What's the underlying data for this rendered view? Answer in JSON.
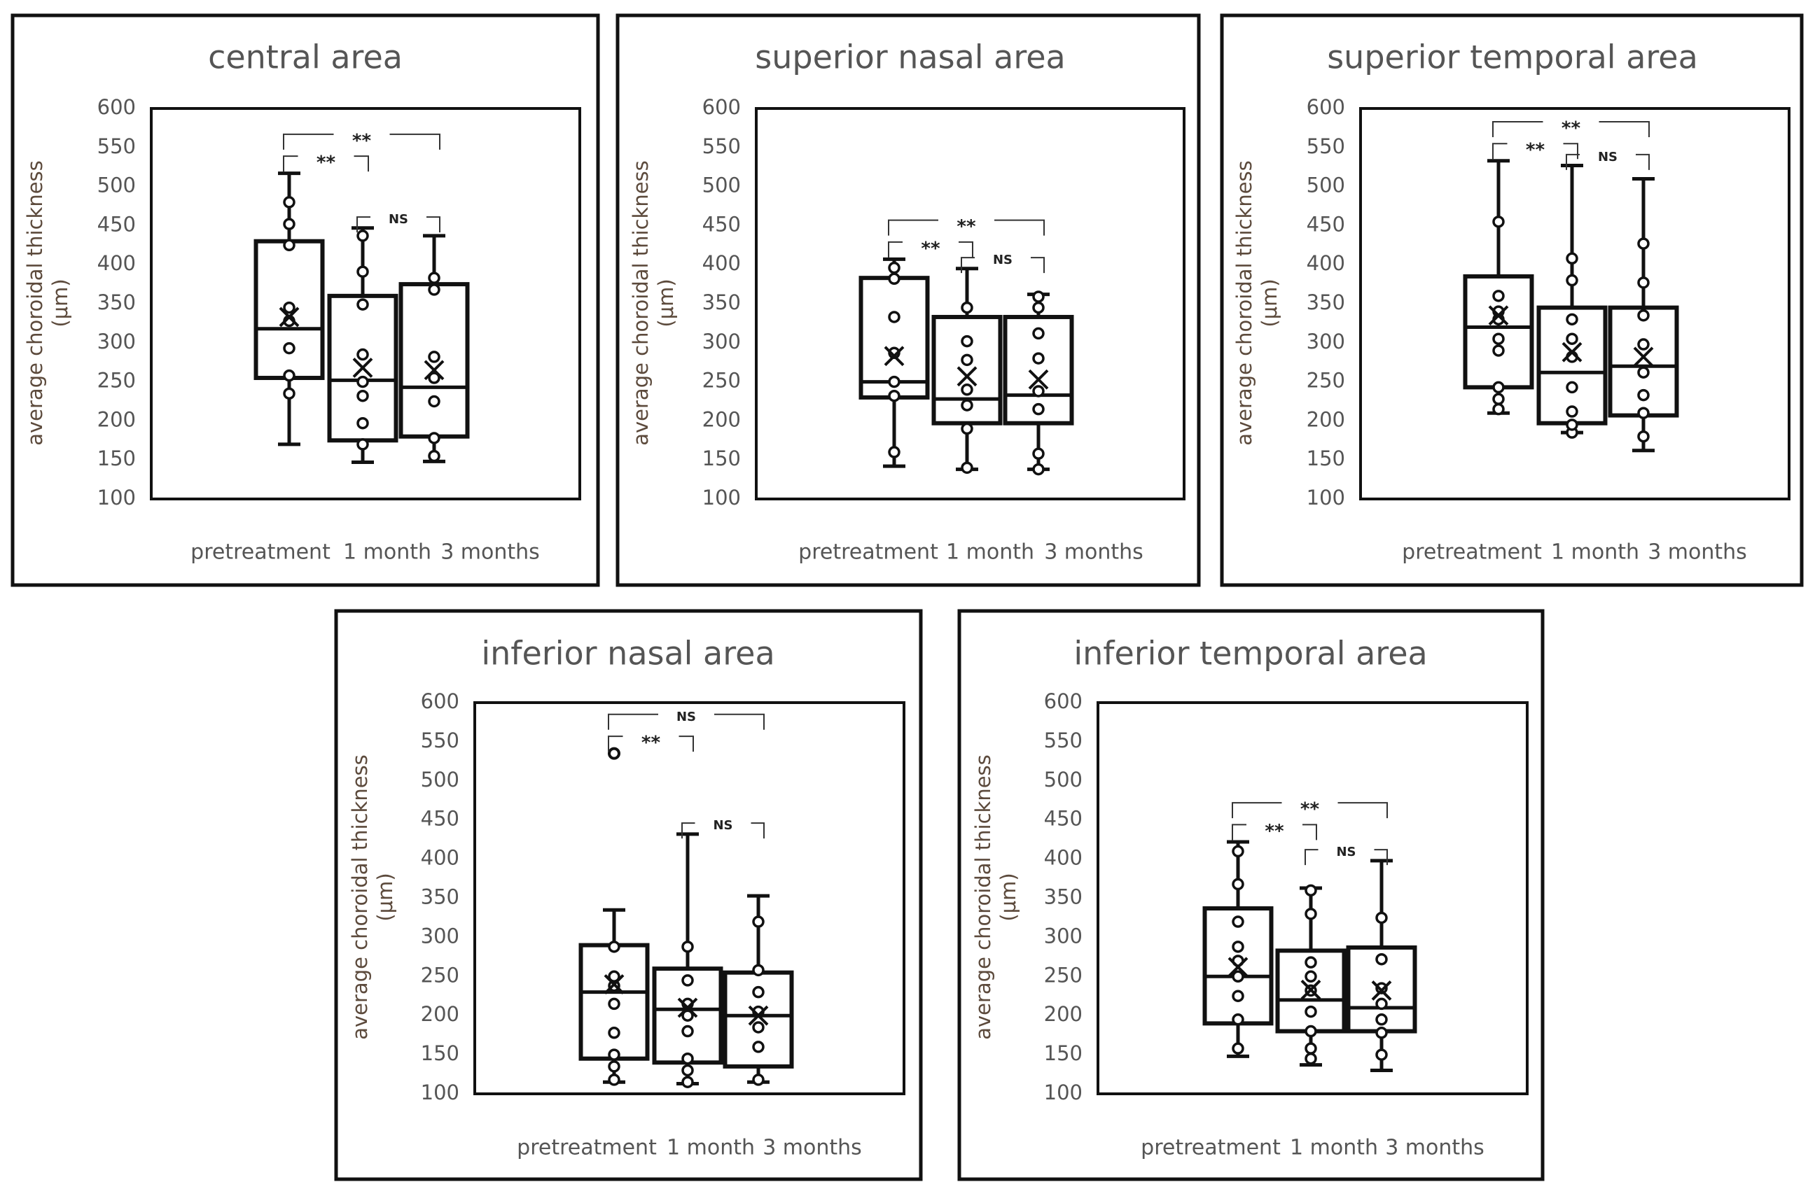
{
  "chart_data": [
    {
      "type": "box",
      "title": "central area",
      "ylabel": "average choroidal thickness (μm)",
      "ylabel_lines": [
        "average choroidal thickness",
        "(μm)"
      ],
      "ylim": [
        100,
        600
      ],
      "yticks": [
        100,
        150,
        200,
        250,
        300,
        350,
        400,
        450,
        500,
        550,
        600
      ],
      "categories": [
        "pretreatment",
        "1 month",
        "3 months"
      ],
      "boxes": [
        {
          "min": 170,
          "q1": 255,
          "median": 318,
          "q3": 430,
          "max": 517,
          "mean": 333,
          "points": [
            235,
            258,
            293,
            328,
            345,
            425,
            452,
            480
          ]
        },
        {
          "min": 147,
          "q1": 175,
          "median": 252,
          "q3": 360,
          "max": 447,
          "mean": 268,
          "points": [
            170,
            197,
            232,
            250,
            285,
            349,
            391,
            437
          ]
        },
        {
          "min": 148,
          "q1": 180,
          "median": 243,
          "q3": 375,
          "max": 437,
          "mean": 265,
          "points": [
            155,
            178,
            225,
            255,
            282,
            368,
            383
          ]
        }
      ],
      "comparisons": [
        {
          "from": 0,
          "to": 1,
          "label": "**"
        },
        {
          "from": 0,
          "to": 2,
          "label": "**"
        },
        {
          "from": 1,
          "to": 2,
          "label": "NS"
        }
      ]
    },
    {
      "type": "box",
      "title": "superior nasal area",
      "ylabel": "average choroidal thickness (μm)",
      "ylabel_lines": [
        "average choroidal thickness",
        "(μm)"
      ],
      "ylim": [
        100,
        600
      ],
      "yticks": [
        100,
        150,
        200,
        250,
        300,
        350,
        400,
        450,
        500,
        550,
        600
      ],
      "categories": [
        "pretreatment",
        "1 month",
        "3 months"
      ],
      "boxes": [
        {
          "min": 142,
          "q1": 230,
          "median": 250,
          "q3": 383,
          "max": 407,
          "mean": 283,
          "points": [
            160,
            232,
            250,
            287,
            333,
            382,
            396
          ]
        },
        {
          "min": 138,
          "q1": 197,
          "median": 228,
          "q3": 333,
          "max": 395,
          "mean": 257,
          "points": [
            140,
            190,
            220,
            240,
            278,
            302,
            345
          ]
        },
        {
          "min": 138,
          "q1": 197,
          "median": 233,
          "q3": 333,
          "max": 362,
          "mean": 253,
          "points": [
            138,
            158,
            215,
            238,
            280,
            312,
            345,
            359
          ]
        }
      ],
      "comparisons": [
        {
          "from": 0,
          "to": 1,
          "label": "**"
        },
        {
          "from": 0,
          "to": 2,
          "label": "**"
        },
        {
          "from": 1,
          "to": 2,
          "label": "NS"
        }
      ]
    },
    {
      "type": "box",
      "title": "superior temporal area",
      "ylabel": "average choroidal thickness (μm)",
      "ylabel_lines": [
        "average choroidal thickness",
        "(μm)"
      ],
      "ylim": [
        100,
        600
      ],
      "yticks": [
        100,
        150,
        200,
        250,
        300,
        350,
        400,
        450,
        500,
        550,
        600
      ],
      "categories": [
        "pretreatment",
        "1 month",
        "3 months"
      ],
      "boxes": [
        {
          "min": 210,
          "q1": 243,
          "median": 320,
          "q3": 385,
          "max": 533,
          "mean": 335,
          "points": [
            215,
            228,
            243,
            290,
            305,
            330,
            340,
            360,
            455
          ]
        },
        {
          "min": 185,
          "q1": 197,
          "median": 262,
          "q3": 345,
          "max": 527,
          "mean": 288,
          "points": [
            185,
            195,
            212,
            243,
            282,
            305,
            330,
            380,
            408
          ]
        },
        {
          "min": 162,
          "q1": 207,
          "median": 270,
          "q3": 345,
          "max": 510,
          "mean": 282,
          "points": [
            180,
            210,
            233,
            262,
            298,
            335,
            377,
            427
          ]
        }
      ],
      "comparisons": [
        {
          "from": 0,
          "to": 1,
          "label": "**"
        },
        {
          "from": 0,
          "to": 2,
          "label": "**"
        },
        {
          "from": 1,
          "to": 2,
          "label": "NS"
        }
      ]
    },
    {
      "type": "box",
      "title": "inferior nasal area",
      "ylabel": "average choroidal thickness (μm)",
      "ylabel_lines": [
        "average choroidal thickness",
        "(μm)"
      ],
      "ylim": [
        100,
        600
      ],
      "yticks": [
        100,
        150,
        200,
        250,
        300,
        350,
        400,
        450,
        500,
        550,
        600
      ],
      "categories": [
        "pretreatment",
        "1 month",
        "3 months"
      ],
      "boxes": [
        {
          "min": 115,
          "q1": 145,
          "median": 230,
          "q3": 290,
          "max": 335,
          "mean": 240,
          "outliers": [
            535
          ],
          "points": [
            118,
            135,
            150,
            178,
            215,
            238,
            250,
            288
          ]
        },
        {
          "min": 113,
          "q1": 140,
          "median": 208,
          "q3": 260,
          "max": 432,
          "mean": 210,
          "points": [
            115,
            130,
            145,
            180,
            200,
            215,
            245,
            288
          ]
        },
        {
          "min": 115,
          "q1": 135,
          "median": 200,
          "q3": 255,
          "max": 353,
          "mean": 200,
          "points": [
            118,
            160,
            185,
            205,
            230,
            258,
            320
          ]
        }
      ],
      "comparisons": [
        {
          "from": 0,
          "to": 1,
          "label": "**"
        },
        {
          "from": 0,
          "to": 2,
          "label": "NS"
        },
        {
          "from": 1,
          "to": 2,
          "label": "NS"
        }
      ]
    },
    {
      "type": "box",
      "title": "inferior temporal area",
      "ylabel": "average choroidal thickness (μm)",
      "ylabel_lines": [
        "average choroidal thickness",
        "(μm)"
      ],
      "ylim": [
        100,
        600
      ],
      "yticks": [
        100,
        150,
        200,
        250,
        300,
        350,
        400,
        450,
        500,
        550,
        600
      ],
      "categories": [
        "pretreatment",
        "1 month",
        "3 months"
      ],
      "boxes": [
        {
          "min": 148,
          "q1": 190,
          "median": 250,
          "q3": 337,
          "max": 422,
          "mean": 262,
          "points": [
            158,
            195,
            225,
            250,
            270,
            288,
            320,
            368,
            410
          ]
        },
        {
          "min": 137,
          "q1": 180,
          "median": 220,
          "q3": 283,
          "max": 363,
          "mean": 233,
          "points": [
            145,
            158,
            180,
            205,
            232,
            250,
            268,
            330,
            360
          ]
        },
        {
          "min": 130,
          "q1": 180,
          "median": 210,
          "q3": 287,
          "max": 398,
          "mean": 232,
          "points": [
            150,
            178,
            195,
            215,
            235,
            272,
            325
          ]
        }
      ],
      "comparisons": [
        {
          "from": 0,
          "to": 1,
          "label": "**"
        },
        {
          "from": 0,
          "to": 2,
          "label": "**"
        },
        {
          "from": 1,
          "to": 2,
          "label": "NS"
        }
      ]
    }
  ]
}
